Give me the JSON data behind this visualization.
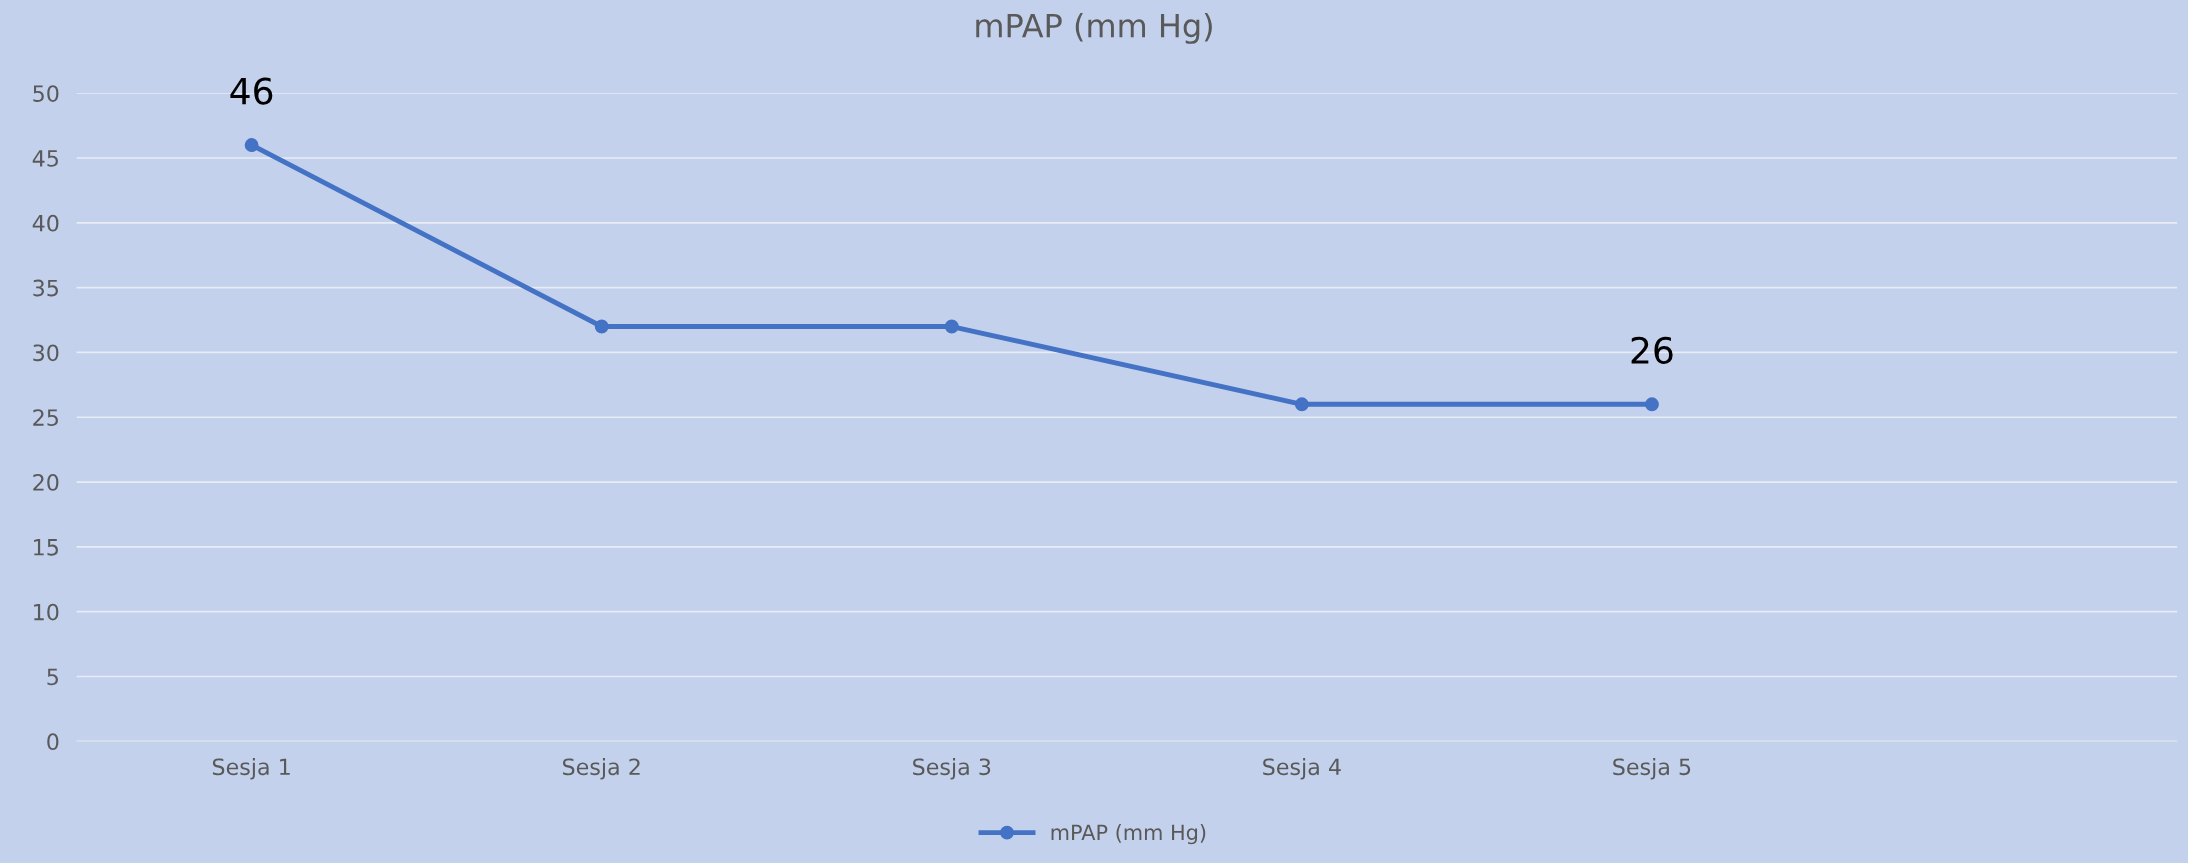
{
  "chart_data": {
    "type": "line",
    "title": "mPAP (mm Hg)",
    "categories": [
      "Sesja 1",
      "Sesja 2",
      "Sesja 3",
      "Sesja 4",
      "Sesja 5",
      null
    ],
    "series": [
      {
        "name": "mPAP (mm Hg)",
        "color": "#4472c4",
        "values": [
          46,
          32,
          32,
          26,
          26,
          null
        ],
        "value_labels": [
          "46",
          null,
          null,
          null,
          "26",
          null
        ]
      }
    ],
    "ylim": [
      0,
      50
    ],
    "yticks": [
      0,
      5,
      10,
      15,
      20,
      25,
      30,
      35,
      40,
      45,
      50
    ],
    "grid": "y",
    "legend": "bottom",
    "marker": "circle",
    "line_style": "solid"
  }
}
